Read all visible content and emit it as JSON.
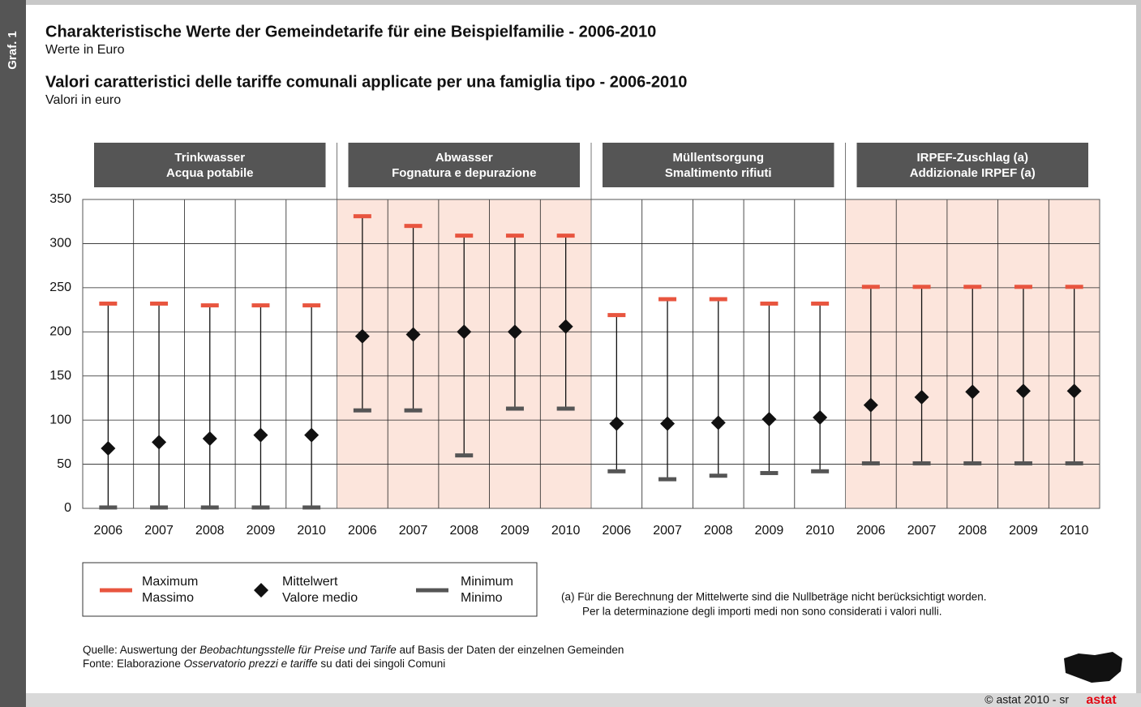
{
  "chart_data": {
    "type": "range",
    "side_label": "Graf. 1",
    "title": "Charakteristische Werte der Gemeindetarife für eine Beispielfamilie - 2006-2010",
    "subtitle": "Werte in Euro",
    "title2": "Valori caratteristici delle tariffe comunali applicate per una famiglia tipo - 2006-2010",
    "subtitle2": "Valori in euro",
    "groups": [
      {
        "label": [
          "Trinkwasser",
          "Acqua potabile"
        ],
        "shaded": false
      },
      {
        "label": [
          "Abwasser",
          "Fognatura e depurazione"
        ],
        "shaded": true
      },
      {
        "label": [
          "Müllentsorgung",
          "Smaltimento rifiuti"
        ],
        "shaded": false
      },
      {
        "label": [
          "IRPEF-Zuschlag (a)",
          "Addizionale IRPEF (a)"
        ],
        "shaded": true
      }
    ],
    "shade_color": "#fce5dc",
    "categories": [
      "2006",
      "2007",
      "2008",
      "2009",
      "2010",
      "2006",
      "2007",
      "2008",
      "2009",
      "2010",
      "2006",
      "2007",
      "2008",
      "2009",
      "2010",
      "2006",
      "2007",
      "2008",
      "2009",
      "2010"
    ],
    "series": [
      {
        "name": [
          "Maximum",
          "Massimo"
        ],
        "color": "#e8553f",
        "marker": "dash",
        "values": [
          232,
          232,
          230,
          230,
          230,
          331,
          320,
          309,
          309,
          309,
          219,
          237,
          237,
          232,
          232,
          251,
          251,
          251,
          251,
          251
        ]
      },
      {
        "name": [
          "Mittelwert",
          "Valore medio"
        ],
        "color": "#111111",
        "marker": "diamond",
        "values": [
          68,
          75,
          79,
          83,
          83,
          195,
          197,
          200,
          200,
          206,
          96,
          96,
          97,
          101,
          103,
          117,
          126,
          132,
          133,
          133
        ]
      },
      {
        "name": [
          "Minimum",
          "Minimo"
        ],
        "color": "#555555",
        "marker": "dash",
        "values": [
          1,
          1,
          1,
          1,
          1,
          111,
          111,
          60,
          113,
          113,
          42,
          33,
          37,
          40,
          42,
          51,
          51,
          51,
          51,
          51
        ]
      }
    ],
    "ylim": [
      0,
      350
    ],
    "yticks": [
      0,
      50,
      100,
      150,
      200,
      250,
      300,
      350
    ],
    "grid": true,
    "footnote": [
      "(a) Für die Berechnung der Mittelwerte sind die Nullbeträge nicht berücksichtigt worden.",
      "Per la determinazione degli importi medi non sono considerati i valori nulli."
    ],
    "source": [
      [
        "Quelle: Auswertung der ",
        "Beobachtungsstelle für Preise und Tarife",
        " auf Basis der Daten der einzelnen Gemeinden"
      ],
      [
        "Fonte: Elaborazione ",
        "Osservatorio prezzi e tariffe",
        " su dati dei singoli Comuni"
      ]
    ],
    "copyright": "© astat 2010 - sr",
    "logo": "astat"
  }
}
